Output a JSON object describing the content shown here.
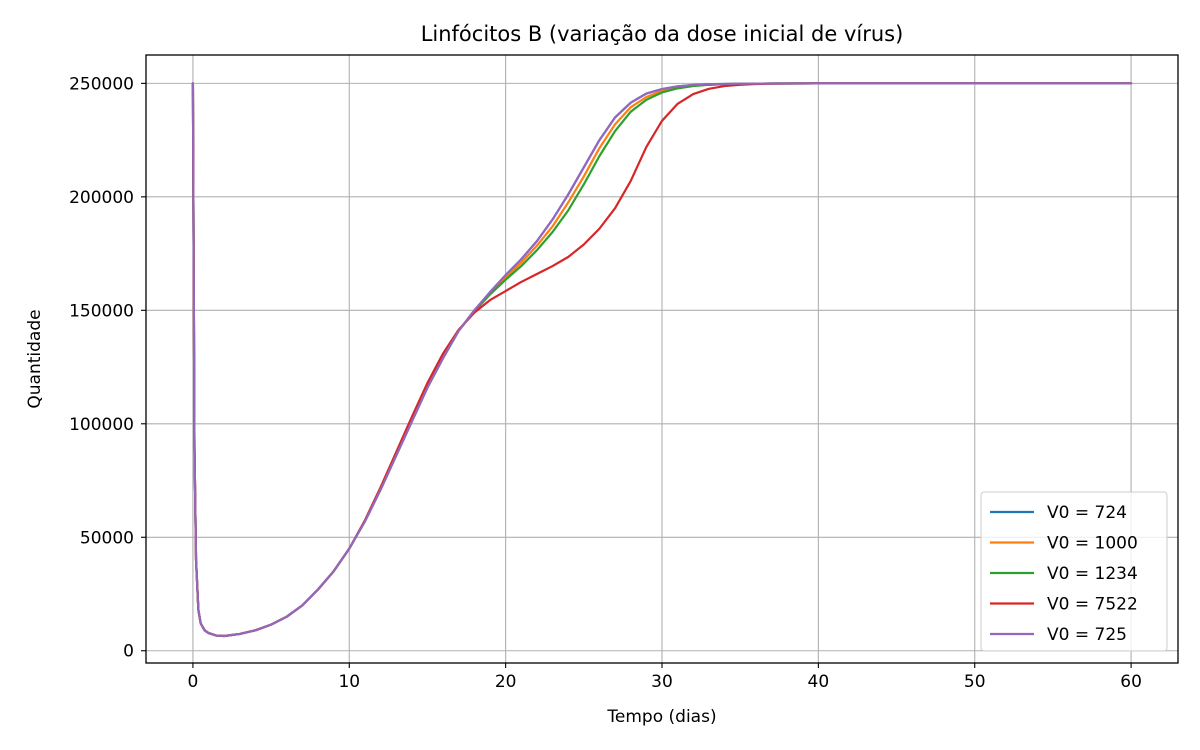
{
  "chart_data": {
    "type": "line",
    "title": "Linfócitos B (variação da dose inicial de vírus)",
    "xlabel": "Tempo (dias)",
    "ylabel": "Quantidade",
    "xlim": [
      -3,
      63
    ],
    "ylim": [
      -5400,
      262500
    ],
    "xticks": [
      0,
      10,
      20,
      30,
      40,
      50,
      60
    ],
    "yticks": [
      0,
      50000,
      100000,
      150000,
      200000,
      250000
    ],
    "xtick_labels": [
      "0",
      "10",
      "20",
      "30",
      "40",
      "50",
      "60"
    ],
    "ytick_labels": [
      "0",
      "50000",
      "100000",
      "150000",
      "200000",
      "250000"
    ],
    "grid": true,
    "legend_position": "lower-right",
    "series": [
      {
        "name": "V0 = 724",
        "color": "#1f77b4",
        "x": [
          0,
          0.05,
          0.1,
          0.2,
          0.35,
          0.5,
          0.75,
          1,
          1.5,
          2,
          3,
          4,
          5,
          6,
          7,
          8,
          9,
          10,
          11,
          12,
          13,
          14,
          15,
          16,
          17,
          18,
          19,
          20,
          21,
          22,
          23,
          24,
          25,
          26,
          27,
          28,
          29,
          30,
          31,
          32,
          33,
          34,
          35,
          37,
          40,
          45,
          50,
          55,
          60
        ],
        "y": [
          250000,
          170000,
          90000,
          40000,
          18000,
          12000,
          9000,
          7800,
          6700,
          6500,
          7400,
          9000,
          11500,
          15000,
          20000,
          27000,
          35000,
          45000,
          57000,
          71000,
          86000,
          101000,
          116000,
          129000,
          141000,
          150000,
          158000,
          165500,
          172500,
          180500,
          190000,
          201000,
          213000,
          225000,
          235000,
          241500,
          245500,
          247500,
          248700,
          249300,
          249600,
          249750,
          249850,
          249950,
          250000,
          250000,
          250000,
          250000,
          250000
        ]
      },
      {
        "name": "V0 = 1000",
        "color": "#ff7f0e",
        "x": [
          0,
          0.05,
          0.1,
          0.2,
          0.35,
          0.5,
          0.75,
          1,
          1.5,
          2,
          3,
          4,
          5,
          6,
          7,
          8,
          9,
          10,
          11,
          12,
          13,
          14,
          15,
          16,
          17,
          18,
          19,
          20,
          21,
          22,
          23,
          24,
          25,
          26,
          27,
          28,
          29,
          30,
          31,
          32,
          33,
          34,
          35,
          37,
          40,
          45,
          50,
          55,
          60
        ],
        "y": [
          250000,
          170000,
          90000,
          40000,
          18000,
          12000,
          9000,
          7800,
          6700,
          6500,
          7400,
          9000,
          11500,
          15000,
          20000,
          27000,
          35000,
          45000,
          57000,
          71000,
          86000,
          101000,
          116000,
          129000,
          141000,
          150000,
          157500,
          164500,
          171000,
          178500,
          187000,
          197500,
          209000,
          221500,
          232000,
          239500,
          244000,
          246700,
          248200,
          249000,
          249450,
          249700,
          249800,
          249950,
          250000,
          250000,
          250000,
          250000,
          250000
        ]
      },
      {
        "name": "V0 = 1234",
        "color": "#2ca02c",
        "x": [
          0,
          0.05,
          0.1,
          0.2,
          0.35,
          0.5,
          0.75,
          1,
          1.5,
          2,
          3,
          4,
          5,
          6,
          7,
          8,
          9,
          10,
          11,
          12,
          13,
          14,
          15,
          16,
          17,
          18,
          19,
          20,
          21,
          22,
          23,
          24,
          25,
          26,
          27,
          28,
          29,
          30,
          31,
          32,
          33,
          34,
          35,
          37,
          40,
          45,
          50,
          55,
          60
        ],
        "y": [
          250000,
          170000,
          90000,
          40000,
          18000,
          12000,
          9000,
          7800,
          6700,
          6500,
          7400,
          9000,
          11500,
          15000,
          20000,
          27000,
          35000,
          45000,
          57000,
          71000,
          86000,
          101000,
          116000,
          129000,
          141000,
          149500,
          157000,
          163500,
          169500,
          176500,
          184500,
          194000,
          205500,
          218000,
          229000,
          237500,
          242800,
          246000,
          247800,
          248800,
          249350,
          249650,
          249800,
          249950,
          250000,
          250000,
          250000,
          250000,
          250000
        ]
      },
      {
        "name": "V0 = 7522",
        "color": "#d62728",
        "x": [
          0,
          0.05,
          0.1,
          0.2,
          0.35,
          0.5,
          0.75,
          1,
          1.5,
          2,
          3,
          4,
          5,
          6,
          7,
          8,
          9,
          10,
          11,
          12,
          13,
          14,
          15,
          16,
          17,
          18,
          19,
          20,
          21,
          22,
          23,
          24,
          25,
          26,
          27,
          28,
          29,
          30,
          31,
          32,
          33,
          34,
          35,
          36,
          37,
          38,
          40,
          45,
          50,
          55,
          60
        ],
        "y": [
          250000,
          170000,
          90000,
          40000,
          18000,
          12000,
          9000,
          7800,
          6700,
          6500,
          7400,
          9000,
          11500,
          15000,
          20000,
          27000,
          35000,
          45000,
          57500,
          72000,
          87500,
          103000,
          118000,
          131000,
          141500,
          149000,
          154500,
          158500,
          162500,
          166000,
          169500,
          173500,
          179000,
          186000,
          195000,
          207000,
          222000,
          233500,
          241000,
          245300,
          247600,
          248800,
          249400,
          249700,
          249850,
          249920,
          250000,
          250000,
          250000,
          250000,
          250000
        ]
      },
      {
        "name": "V0 = 725",
        "color": "#9467bd",
        "x": [
          0,
          0.05,
          0.1,
          0.2,
          0.35,
          0.5,
          0.75,
          1,
          1.5,
          2,
          3,
          4,
          5,
          6,
          7,
          8,
          9,
          10,
          11,
          12,
          13,
          14,
          15,
          16,
          17,
          18,
          19,
          20,
          21,
          22,
          23,
          24,
          25,
          26,
          27,
          28,
          29,
          30,
          31,
          32,
          33,
          34,
          35,
          37,
          40,
          45,
          50,
          55,
          60
        ],
        "y": [
          250000,
          170000,
          90000,
          40000,
          18000,
          12000,
          9000,
          7800,
          6700,
          6500,
          7400,
          9000,
          11500,
          15000,
          20000,
          27000,
          35000,
          45000,
          57000,
          71000,
          86000,
          101000,
          116000,
          129000,
          141000,
          150000,
          158000,
          165500,
          172500,
          180500,
          190000,
          201000,
          213000,
          225000,
          235000,
          241500,
          245500,
          247500,
          248700,
          249300,
          249600,
          249750,
          249850,
          249950,
          250000,
          250000,
          250000,
          250000,
          250000
        ]
      }
    ]
  }
}
